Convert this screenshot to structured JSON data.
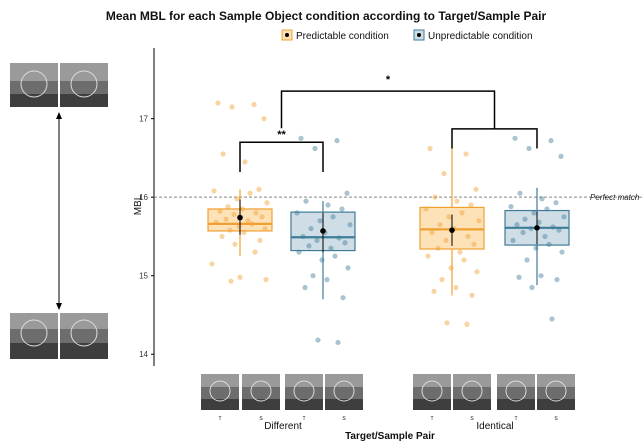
{
  "chart_data": {
    "type": "box",
    "title": "Mean MBL for each Sample Object condition according to Target/Sample Pair",
    "xlabel": "Target/Sample Pair",
    "ylabel": "MBL",
    "ylim": [
      13.85,
      17.9
    ],
    "yticks": [
      14,
      15,
      16,
      17
    ],
    "categories": [
      "Different",
      "Identical"
    ],
    "thumb_labels": [
      "T",
      "S",
      "T",
      "S",
      "T",
      "S",
      "T",
      "S"
    ],
    "legend": {
      "position": "top",
      "items": [
        {
          "name": "Predictable condition",
          "color": "#f0a030"
        },
        {
          "name": "Unpredictable condition",
          "color": "#3f7c98"
        }
      ]
    },
    "reference_line": {
      "value": 16,
      "label": "Perfect match"
    },
    "significance": [
      {
        "label": "**",
        "between": [
          "Different/Predictable",
          "Different/Unpredictable"
        ],
        "y": 16.7
      },
      {
        "label": "*",
        "between": [
          "Different",
          "Identical"
        ],
        "y": 17.35
      }
    ],
    "groups": [
      {
        "name": "Different / Predictable condition",
        "condition": "Predictable condition",
        "category": "Different",
        "slot": 0,
        "box": {
          "q1": 15.57,
          "median": 15.66,
          "q3": 15.85,
          "whisker_low": 15.25,
          "whisker_high": 16.1
        },
        "mean": 15.74,
        "ci": [
          15.52,
          15.97
        ],
        "points": [
          17.2,
          17.18,
          17.15,
          17.0,
          16.55,
          16.45,
          16.1,
          16.08,
          16.05,
          15.98,
          15.93,
          15.88,
          15.85,
          15.82,
          15.8,
          15.78,
          15.75,
          15.72,
          15.7,
          15.68,
          15.66,
          15.63,
          15.6,
          15.58,
          15.55,
          15.5,
          15.45,
          15.4,
          15.3,
          15.15,
          14.98,
          14.95,
          14.93
        ]
      },
      {
        "name": "Different / Unpredictable condition",
        "condition": "Unpredictable condition",
        "category": "Different",
        "slot": 1,
        "box": {
          "q1": 15.32,
          "median": 15.49,
          "q3": 15.81,
          "whisker_low": 14.7,
          "whisker_high": 15.95
        },
        "mean": 15.57,
        "ci": [
          15.3,
          15.8
        ],
        "points": [
          16.75,
          16.72,
          16.62,
          16.05,
          15.95,
          15.9,
          15.85,
          15.8,
          15.75,
          15.7,
          15.65,
          15.6,
          15.55,
          15.5,
          15.48,
          15.45,
          15.42,
          15.38,
          15.35,
          15.3,
          15.25,
          15.2,
          15.1,
          15.0,
          14.95,
          14.85,
          14.72,
          14.18,
          14.15
        ]
      },
      {
        "name": "Identical / Predictable condition",
        "condition": "Predictable condition",
        "category": "Identical",
        "slot": 2,
        "box": {
          "q1": 15.34,
          "median": 15.59,
          "q3": 15.87,
          "whisker_low": 14.75,
          "whisker_high": 16.65
        },
        "mean": 15.58,
        "ci": [
          15.38,
          15.78
        ],
        "points": [
          16.62,
          16.55,
          16.3,
          16.1,
          16.0,
          15.95,
          15.9,
          15.85,
          15.8,
          15.75,
          15.7,
          15.65,
          15.6,
          15.55,
          15.5,
          15.45,
          15.4,
          15.35,
          15.3,
          15.25,
          15.2,
          15.1,
          15.05,
          14.95,
          14.85,
          14.8,
          14.75,
          14.4,
          14.38
        ]
      },
      {
        "name": "Identical / Unpredictable condition",
        "condition": "Unpredictable condition",
        "category": "Identical",
        "slot": 3,
        "box": {
          "q1": 15.39,
          "median": 15.61,
          "q3": 15.83,
          "whisker_low": 14.88,
          "whisker_high": 16.12
        },
        "mean": 15.61,
        "ci": [
          15.4,
          15.82
        ],
        "points": [
          16.75,
          16.72,
          16.62,
          16.52,
          16.05,
          15.98,
          15.93,
          15.88,
          15.85,
          15.8,
          15.75,
          15.72,
          15.68,
          15.65,
          15.62,
          15.6,
          15.58,
          15.55,
          15.5,
          15.45,
          15.4,
          15.35,
          15.3,
          15.2,
          15.0,
          14.98,
          14.95,
          14.85,
          14.45
        ]
      }
    ]
  }
}
